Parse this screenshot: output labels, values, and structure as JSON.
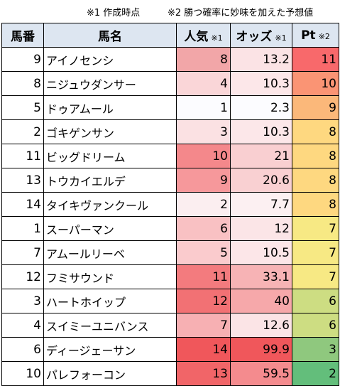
{
  "notes": {
    "note1": "※1 作成時点",
    "note2": "※2 勝つ確率に妙味を加えた予想値"
  },
  "columns": {
    "number": "馬番",
    "name": "馬名",
    "popularity": "人気",
    "popularity_note": "※1",
    "odds": "オッズ",
    "odds_note": "※1",
    "pt": "Pt",
    "pt_note": "※2"
  },
  "rows": [
    {
      "number": "9",
      "name": "アイノセンシ",
      "popularity": "8",
      "odds": "13.2",
      "pt": "11",
      "pop_color": "#f2a6a8",
      "odds_color": "#fbe3e5",
      "pt_color": "#f8696b"
    },
    {
      "number": "8",
      "name": "ニジュウダンサー",
      "popularity": "4",
      "odds": "10.3",
      "pt": "10",
      "pop_color": "#fad6d8",
      "odds_color": "#fce7e9",
      "pt_color": "#fa9474"
    },
    {
      "number": "5",
      "name": "ドゥアムール",
      "popularity": "1",
      "odds": "2.3",
      "pt": "9",
      "pop_color": "#fcfcff",
      "odds_color": "#fcfcff",
      "pt_color": "#fbb87a"
    },
    {
      "number": "2",
      "name": "ゴキゲンサン",
      "popularity": "3",
      "odds": "10.3",
      "pt": "8",
      "pop_color": "#fbe1e3",
      "odds_color": "#fce7e9",
      "pt_color": "#fed880"
    },
    {
      "number": "11",
      "name": "ビッグドリーム",
      "popularity": "10",
      "odds": "21",
      "pt": "8",
      "pop_color": "#f4888b",
      "odds_color": "#f9cfd1",
      "pt_color": "#fed880"
    },
    {
      "number": "13",
      "name": "トウカイエルデ",
      "popularity": "9",
      "odds": "20.6",
      "pt": "8",
      "pop_color": "#f6989b",
      "odds_color": "#f9d0d2",
      "pt_color": "#fed880"
    },
    {
      "number": "14",
      "name": "タイキヴァンクール",
      "popularity": "2",
      "odds": "7.7",
      "pt": "8",
      "pop_color": "#fbeef0",
      "odds_color": "#fcf0f2",
      "pt_color": "#fed880"
    },
    {
      "number": "1",
      "name": "スーパーマン",
      "popularity": "6",
      "odds": "12",
      "pt": "7",
      "pop_color": "#f9c1c3",
      "odds_color": "#fbe5e7",
      "pt_color": "#f7e984"
    },
    {
      "number": "7",
      "name": "アムールリーベ",
      "popularity": "5",
      "odds": "10.5",
      "pt": "7",
      "pop_color": "#facbcd",
      "odds_color": "#fce6e8",
      "pt_color": "#f7e984"
    },
    {
      "number": "12",
      "name": "フミサウンド",
      "popularity": "11",
      "odds": "33.1",
      "pt": "7",
      "pop_color": "#f37b7e",
      "odds_color": "#f7b3b5",
      "pt_color": "#f7e984"
    },
    {
      "number": "3",
      "name": "ハートホイップ",
      "popularity": "12",
      "odds": "40",
      "pt": "6",
      "pop_color": "#f27174",
      "odds_color": "#f6a8aa",
      "pt_color": "#cddd82"
    },
    {
      "number": "4",
      "name": "スイミーユニバンス",
      "popularity": "7",
      "odds": "12.6",
      "pt": "6",
      "pop_color": "#f7b0b3",
      "odds_color": "#fbe4e6",
      "pt_color": "#cddd82"
    },
    {
      "number": "6",
      "name": "ディージェーサン",
      "popularity": "14",
      "odds": "99.9",
      "pt": "3",
      "pop_color": "#f0575b",
      "odds_color": "#f0575b",
      "pt_color": "#8fc87e"
    },
    {
      "number": "10",
      "name": "パレフォーコン",
      "popularity": "13",
      "odds": "59.5",
      "pt": "2",
      "pop_color": "#f16568",
      "odds_color": "#f48b8e",
      "pt_color": "#63be7b"
    }
  ]
}
